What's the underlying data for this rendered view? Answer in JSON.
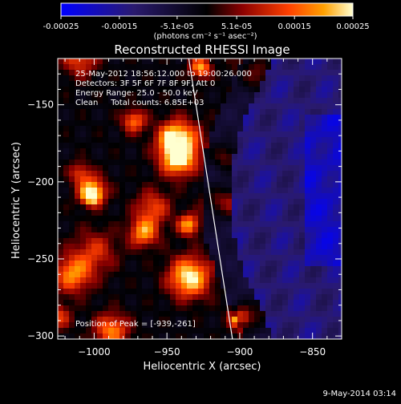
{
  "chart_data": {
    "type": "heatmap",
    "title": "Reconstructed RHESSI Image",
    "xlabel": "Heliocentric X (arcsec)",
    "ylabel": "Heliocentric Y (arcsec)",
    "xlim": [
      -1025,
      -830
    ],
    "ylim": [
      -302,
      -120
    ],
    "xticks": [
      -1000,
      -950,
      -900,
      -850
    ],
    "yticks": [
      -300,
      -250,
      -200,
      -150
    ],
    "colorbar": {
      "min": -0.00025,
      "max": 0.00025,
      "ticks": [
        -0.00025,
        -0.00015,
        -5.1e-05,
        5.1e-05,
        0.00015,
        0.00025
      ],
      "tick_labels": [
        "-0.00025",
        "-0.00015",
        "-5.1e-05",
        "5.1e-05",
        "0.00015",
        "0.00025"
      ],
      "label": "(photons cm⁻² s⁻¹ asec⁻²)"
    },
    "annotations": [
      "25-May-2012 18:56:12.000 to 19:00:26.000",
      "Detectors: 3F 5F 6F 7F 8F 9F, Att 0",
      "Energy Range: 25.0 - 50.0 keV",
      "Clean     Total counts: 6.85E+03"
    ],
    "peak_label": "Position of Peak = [-939,-261]",
    "peak_position": [
      -939,
      -261
    ],
    "limb_line": [
      [
        -935,
        -120
      ],
      [
        -905,
        -302
      ]
    ],
    "grid": false
  },
  "footer": {
    "timestamp": "9-May-2014 03:14"
  },
  "colors": {
    "background": "#000000",
    "foreground": "#ffffff",
    "colormap": [
      "#0000ff",
      "#2a1a6e",
      "#000000",
      "#8a0000",
      "#ff4000",
      "#ffa000",
      "#ffffd0"
    ]
  }
}
